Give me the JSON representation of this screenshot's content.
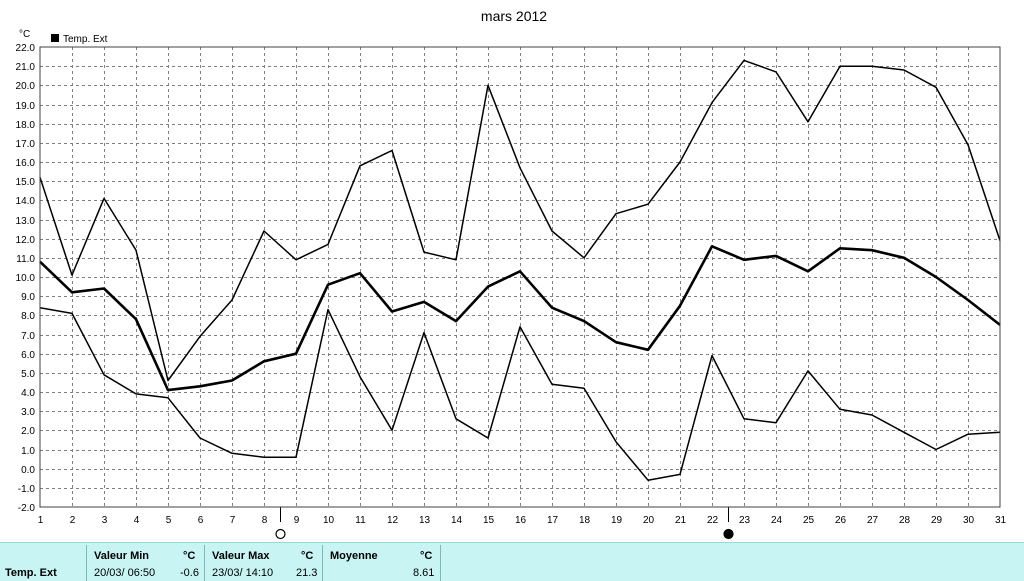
{
  "chart_data": {
    "type": "line",
    "title": "mars 2012",
    "ylabel": "°C",
    "xlabel": "",
    "x": [
      1,
      2,
      3,
      4,
      5,
      6,
      7,
      8,
      9,
      10,
      11,
      12,
      13,
      14,
      15,
      16,
      17,
      18,
      19,
      20,
      21,
      22,
      23,
      24,
      25,
      26,
      27,
      28,
      29,
      30,
      31
    ],
    "ylim": [
      -2.0,
      22.0
    ],
    "ystep": 1.0,
    "grid": true,
    "legend": "top-left",
    "legend_label": "Temp. Ext",
    "series": [
      {
        "role": "max",
        "color": "#000000",
        "values": [
          15.2,
          10.1,
          14.1,
          11.4,
          4.6,
          6.9,
          8.8,
          12.4,
          10.9,
          11.7,
          15.8,
          16.6,
          11.3,
          10.9,
          20.0,
          15.7,
          12.4,
          11.0,
          13.3,
          13.8,
          16.0,
          19.1,
          21.3,
          20.7,
          18.1,
          21.0,
          21.0,
          20.8,
          19.9,
          16.9,
          11.9
        ]
      },
      {
        "role": "mean",
        "color": "#000000",
        "values": [
          10.8,
          9.2,
          9.4,
          7.8,
          4.1,
          4.3,
          4.6,
          5.6,
          6.0,
          9.6,
          10.2,
          8.2,
          8.7,
          7.7,
          9.5,
          10.3,
          8.4,
          7.7,
          6.6,
          6.2,
          8.5,
          11.6,
          10.9,
          11.1,
          10.3,
          11.5,
          11.4,
          11.0,
          10.0,
          8.8,
          7.5
        ]
      },
      {
        "role": "min",
        "color": "#000000",
        "values": [
          8.4,
          8.1,
          4.9,
          3.9,
          3.7,
          1.6,
          0.8,
          0.6,
          0.6,
          8.3,
          4.8,
          2.0,
          7.1,
          2.6,
          1.6,
          7.4,
          4.4,
          4.2,
          1.4,
          -0.6,
          -0.3,
          5.9,
          2.6,
          2.4,
          5.1,
          3.1,
          2.8,
          1.9,
          1.0,
          1.8,
          1.9
        ]
      }
    ],
    "moon_markers": [
      {
        "x": 8.5,
        "phase": "full"
      },
      {
        "x": 22.5,
        "phase": "new"
      }
    ]
  },
  "stats": {
    "row_label": "Temp. Ext",
    "min_header": "Valeur Min",
    "max_header": "Valeur Max",
    "mean_header": "Moyenne",
    "unit": "°C",
    "min_time": "20/03/  06:50",
    "min_value": "-0.6",
    "max_time": "23/03/  14:10",
    "max_value": "21.3",
    "mean_value": "8.61"
  }
}
